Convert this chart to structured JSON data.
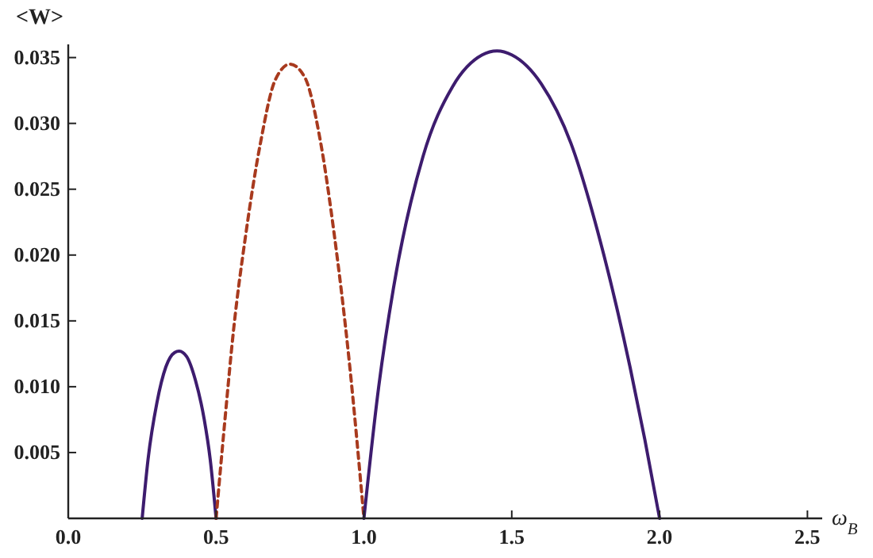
{
  "chart_data": {
    "type": "line",
    "ylabel": "<W>",
    "xlabel": "ω$_{B}$",
    "xlim": [
      0,
      2.55
    ],
    "ylim": [
      0,
      0.036
    ],
    "xticks": [
      {
        "value": 0,
        "label": "0.0"
      },
      0.5,
      {
        "value": 1,
        "label": "1.0"
      },
      1.5,
      {
        "value": 2,
        "label": "2.0"
      },
      2.5
    ],
    "yticks": [
      0.005,
      {
        "value": 0.01,
        "label": "0.010"
      },
      0.015,
      {
        "value": 0.02,
        "label": "0.020"
      },
      0.025,
      {
        "value": 0.03,
        "label": "0.030"
      },
      0.035
    ],
    "grid": false,
    "series": [
      {
        "color": "#3d1c6e",
        "line_style": "solid",
        "x": [
          0.25,
          0.27,
          0.3,
          0.33,
          0.36,
          0.375,
          0.4,
          0.43,
          0.46,
          0.48,
          0.5
        ],
        "values": [
          0,
          0.0045,
          0.0088,
          0.0115,
          0.0126,
          0.0127,
          0.0123,
          0.0105,
          0.0075,
          0.0045,
          0
        ]
      },
      {
        "color": "#a83a1e",
        "line_style": "dashed",
        "x": [
          0.5,
          0.53,
          0.56,
          0.6,
          0.65,
          0.7,
          0.75,
          0.8,
          0.85,
          0.9,
          0.95,
          1.0
        ],
        "values": [
          0,
          0.0075,
          0.0145,
          0.0215,
          0.0285,
          0.0333,
          0.0345,
          0.0335,
          0.029,
          0.0215,
          0.012,
          0
        ]
      },
      {
        "color": "#3d1c6e",
        "line_style": "solid",
        "x": [
          1.0,
          1.05,
          1.1,
          1.2,
          1.3,
          1.4,
          1.45,
          1.5,
          1.6,
          1.7,
          1.8,
          1.9,
          1.95,
          2.0
        ],
        "values": [
          0,
          0.01,
          0.0175,
          0.0275,
          0.0328,
          0.0352,
          0.0355,
          0.0352,
          0.033,
          0.0285,
          0.021,
          0.0115,
          0.006,
          0
        ]
      }
    ]
  }
}
